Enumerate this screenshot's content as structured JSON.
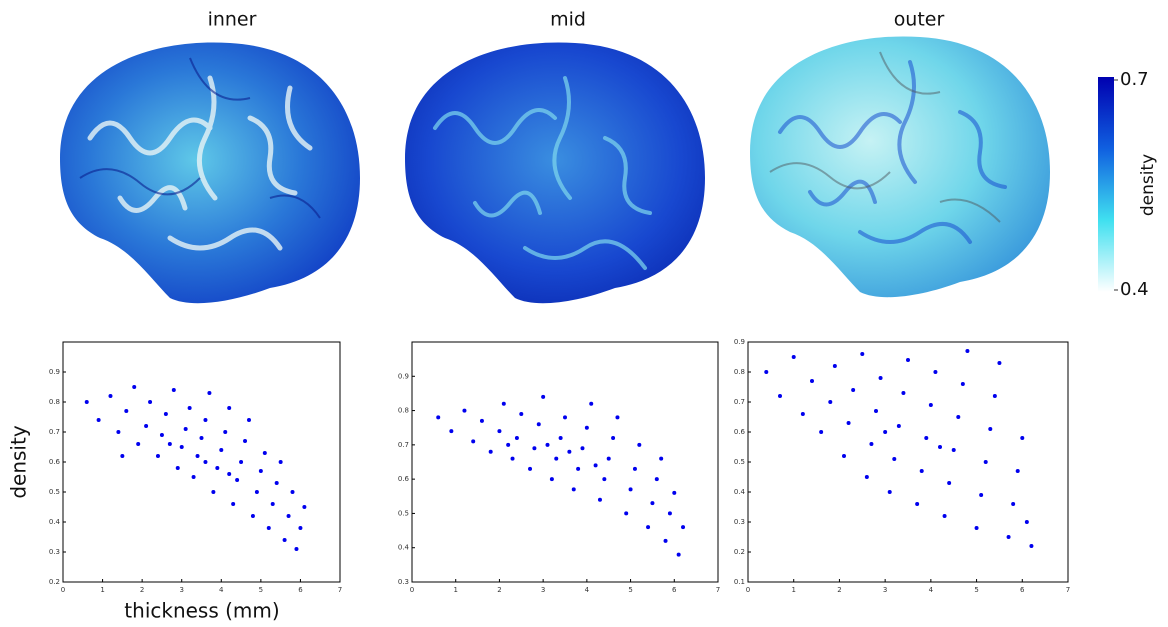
{
  "chart_data": [
    {
      "type": "scatter",
      "title": "inner",
      "y_label": "density",
      "x_label": "thickness (mm)",
      "color": "#0000ee",
      "xlim": [
        0,
        7
      ],
      "ylim": [
        0.2,
        1.0
      ],
      "xticks": [
        0,
        1,
        2,
        3,
        4,
        5,
        6,
        7
      ],
      "yticks": [
        0.2,
        0.3,
        0.4,
        0.5,
        0.6,
        0.7,
        0.8,
        0.9
      ],
      "x": [
        0.6,
        0.9,
        1.2,
        1.4,
        1.6,
        1.8,
        1.9,
        2.1,
        2.2,
        2.4,
        2.5,
        2.6,
        2.8,
        2.9,
        3.0,
        3.1,
        3.2,
        3.3,
        3.4,
        3.5,
        3.6,
        3.7,
        3.8,
        3.9,
        4.0,
        4.1,
        4.2,
        4.3,
        4.4,
        4.5,
        4.6,
        4.7,
        4.8,
        4.9,
        5.0,
        5.1,
        5.2,
        5.3,
        5.4,
        5.5,
        5.6,
        5.7,
        5.8,
        5.9,
        6.0,
        6.1,
        2.7,
        3.6,
        4.2,
        1.5
      ],
      "y": [
        0.8,
        0.74,
        0.82,
        0.7,
        0.77,
        0.85,
        0.66,
        0.72,
        0.8,
        0.62,
        0.69,
        0.76,
        0.84,
        0.58,
        0.65,
        0.71,
        0.78,
        0.55,
        0.62,
        0.68,
        0.74,
        0.83,
        0.5,
        0.58,
        0.64,
        0.7,
        0.78,
        0.46,
        0.54,
        0.6,
        0.67,
        0.74,
        0.42,
        0.5,
        0.57,
        0.63,
        0.38,
        0.46,
        0.53,
        0.6,
        0.34,
        0.42,
        0.5,
        0.31,
        0.38,
        0.45,
        0.66,
        0.6,
        0.56,
        0.62
      ]
    },
    {
      "type": "scatter",
      "title": "mid",
      "color": "#0000ee",
      "xlim": [
        0,
        7
      ],
      "ylim": [
        0.3,
        1.0
      ],
      "xticks": [
        0,
        1,
        2,
        3,
        4,
        5,
        6,
        7
      ],
      "yticks": [
        0.3,
        0.4,
        0.5,
        0.6,
        0.7,
        0.8,
        0.9
      ],
      "x": [
        0.6,
        0.9,
        1.2,
        1.4,
        1.6,
        1.8,
        2.0,
        2.1,
        2.3,
        2.4,
        2.5,
        2.7,
        2.8,
        2.9,
        3.0,
        3.2,
        3.3,
        3.4,
        3.5,
        3.7,
        3.8,
        3.9,
        4.0,
        4.1,
        4.3,
        4.4,
        4.5,
        4.6,
        4.7,
        4.9,
        5.0,
        5.1,
        5.2,
        5.4,
        5.5,
        5.6,
        5.7,
        5.8,
        5.9,
        6.0,
        6.1,
        6.2,
        3.1,
        3.6,
        4.2,
        2.2
      ],
      "y": [
        0.78,
        0.74,
        0.8,
        0.71,
        0.77,
        0.68,
        0.74,
        0.82,
        0.66,
        0.72,
        0.79,
        0.63,
        0.69,
        0.76,
        0.84,
        0.6,
        0.66,
        0.72,
        0.78,
        0.57,
        0.63,
        0.69,
        0.75,
        0.82,
        0.54,
        0.6,
        0.66,
        0.72,
        0.78,
        0.5,
        0.57,
        0.63,
        0.7,
        0.46,
        0.53,
        0.6,
        0.66,
        0.42,
        0.5,
        0.56,
        0.38,
        0.46,
        0.7,
        0.68,
        0.64,
        0.7
      ]
    },
    {
      "type": "scatter",
      "title": "outer",
      "color": "#0000ee",
      "xlim": [
        0,
        7
      ],
      "ylim": [
        0.1,
        0.9
      ],
      "xticks": [
        0,
        1,
        2,
        3,
        4,
        5,
        6,
        7
      ],
      "yticks": [
        0.1,
        0.2,
        0.3,
        0.4,
        0.5,
        0.6,
        0.7,
        0.8,
        0.9
      ],
      "x": [
        0.4,
        0.7,
        1.0,
        1.2,
        1.4,
        1.6,
        1.8,
        1.9,
        2.1,
        2.2,
        2.3,
        2.5,
        2.6,
        2.7,
        2.8,
        2.9,
        3.1,
        3.2,
        3.3,
        3.4,
        3.5,
        3.7,
        3.8,
        3.9,
        4.0,
        4.1,
        4.3,
        4.4,
        4.5,
        4.6,
        4.7,
        4.8,
        5.0,
        5.1,
        5.2,
        5.3,
        5.4,
        5.5,
        5.7,
        5.8,
        5.9,
        6.0,
        6.1,
        6.2,
        3.0,
        4.2
      ],
      "y": [
        0.8,
        0.72,
        0.85,
        0.66,
        0.77,
        0.6,
        0.7,
        0.82,
        0.52,
        0.63,
        0.74,
        0.86,
        0.45,
        0.56,
        0.67,
        0.78,
        0.4,
        0.51,
        0.62,
        0.73,
        0.84,
        0.36,
        0.47,
        0.58,
        0.69,
        0.8,
        0.32,
        0.43,
        0.54,
        0.65,
        0.76,
        0.87,
        0.28,
        0.39,
        0.5,
        0.61,
        0.72,
        0.83,
        0.25,
        0.36,
        0.47,
        0.58,
        0.3,
        0.22,
        0.6,
        0.55
      ]
    }
  ],
  "colorbar": {
    "label": "density",
    "lim": [
      0.4,
      0.7
    ],
    "ticks": [
      0.4,
      0.7
    ],
    "colors": [
      "#ffffff",
      "#40e0f0",
      "#1060e0",
      "#0000b0"
    ]
  }
}
